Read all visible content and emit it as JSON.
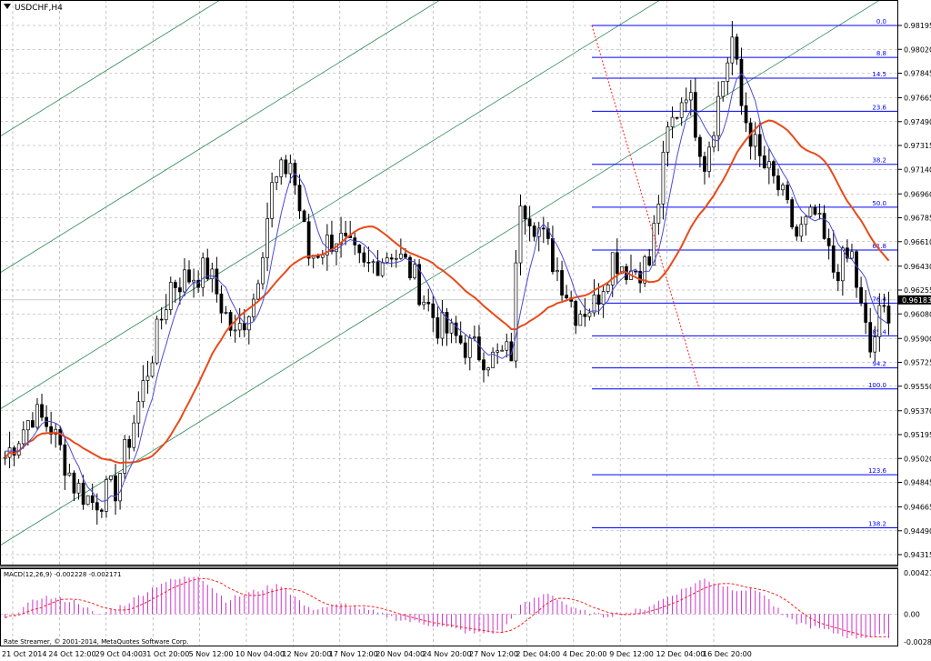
{
  "chart_title": "USDCHF,H4",
  "macd_label": "MACD(12,26,9) -0.002228 -0.002171",
  "copyright": "Rate Streamer, © 2001-2014, MetaQuotes Software Corp.",
  "current_price": "0.96183",
  "colors": {
    "candles": "#000000",
    "ma_fast": "#4a4ad8",
    "ma_slow": "#e84a1a",
    "channel": "#2e8b57",
    "fib": "#0000ff",
    "macd_hist": "#cc33cc",
    "macd_signal": "#ff2020",
    "grid": "#9e9e9e"
  },
  "chart_data": {
    "type": "candlestick",
    "symbol": "USDCHF",
    "timeframe": "H4",
    "price_ticks": [
      "0.98195",
      "0.98020",
      "0.97845",
      "0.97665",
      "0.97490",
      "0.97315",
      "0.97140",
      "0.96960",
      "0.96785",
      "0.96610",
      "0.96430",
      "0.96255",
      "0.96080",
      "0.95900",
      "0.95725",
      "0.95550",
      "0.95370",
      "0.95195",
      "0.95020",
      "0.94845",
      "0.94665",
      "0.94490",
      "0.94315"
    ],
    "price_range": [
      0.9422,
      0.9829
    ],
    "time_ticks": [
      "21 Oct 2014",
      "24 Oct 12:00",
      "29 Oct 04:00",
      "31 Oct 20:00",
      "5 Nov 12:00",
      "10 Nov 04:00",
      "12 Nov 20:00",
      "17 Nov 12:00",
      "20 Nov 04:00",
      "24 Nov 20:00",
      "27 Nov 12:00",
      "2 Dec 04:00",
      "4 Dec 20:00",
      "9 Dec 12:00",
      "12 Dec 04:00",
      "16 Dec 20:00"
    ],
    "close_anchors": [
      [
        0,
        0.9503
      ],
      [
        6,
        0.9535
      ],
      [
        10,
        0.9525
      ],
      [
        15,
        0.9483
      ],
      [
        19,
        0.947
      ],
      [
        24,
        0.948
      ],
      [
        30,
        0.9555
      ],
      [
        36,
        0.963
      ],
      [
        44,
        0.964
      ],
      [
        50,
        0.959
      ],
      [
        54,
        0.962
      ],
      [
        58,
        0.97
      ],
      [
        62,
        0.972
      ],
      [
        66,
        0.965
      ],
      [
        72,
        0.9665
      ],
      [
        78,
        0.964
      ],
      [
        84,
        0.9655
      ],
      [
        88,
        0.964
      ],
      [
        94,
        0.96
      ],
      [
        100,
        0.9585
      ],
      [
        106,
        0.9575
      ],
      [
        110,
        0.958
      ],
      [
        112,
        0.9695
      ],
      [
        116,
        0.967
      ],
      [
        120,
        0.964
      ],
      [
        124,
        0.961
      ],
      [
        128,
        0.9615
      ],
      [
        132,
        0.965
      ],
      [
        136,
        0.964
      ],
      [
        140,
        0.9645
      ],
      [
        144,
        0.974
      ],
      [
        148,
        0.9775
      ],
      [
        152,
        0.972
      ],
      [
        156,
        0.978
      ],
      [
        158,
        0.981
      ],
      [
        160,
        0.976
      ],
      [
        164,
        0.972
      ],
      [
        168,
        0.97
      ],
      [
        172,
        0.9665
      ],
      [
        176,
        0.968
      ],
      [
        180,
        0.964
      ],
      [
        184,
        0.965
      ],
      [
        186,
        0.961
      ],
      [
        188,
        0.958
      ],
      [
        190,
        0.9605
      ],
      [
        192,
        0.9612
      ]
    ],
    "fibonacci": {
      "high": 0.98195,
      "low": 0.9553,
      "levels": [
        "0.0",
        "8.8",
        "14.5",
        "23.6",
        "38.2",
        "50.0",
        "61.8",
        "76.4",
        "85.4",
        "94.2",
        "100.0",
        "123.6",
        "138.2"
      ]
    },
    "macd": {
      "params": "12,26,9",
      "main": -0.002228,
      "signal": -0.002171,
      "range": [
        -0.00285,
        0.00421
      ],
      "ticks": [
        "0.004215",
        "0.00",
        "-0.002855"
      ],
      "anchors": [
        [
          0,
          -0.0005
        ],
        [
          8,
          0.0018
        ],
        [
          16,
          0.0012
        ],
        [
          20,
          -0.0002
        ],
        [
          26,
          0.001
        ],
        [
          34,
          0.0032
        ],
        [
          42,
          0.004
        ],
        [
          48,
          0.0014
        ],
        [
          56,
          0.0026
        ],
        [
          60,
          0.003
        ],
        [
          66,
          0.0005
        ],
        [
          74,
          0.001
        ],
        [
          80,
          0.0002
        ],
        [
          86,
          -0.0006
        ],
        [
          94,
          -0.0012
        ],
        [
          102,
          -0.002
        ],
        [
          108,
          -0.0018
        ],
        [
          112,
          0.0008
        ],
        [
          118,
          0.0022
        ],
        [
          124,
          0.0004
        ],
        [
          130,
          -0.0002
        ],
        [
          138,
          0.0004
        ],
        [
          146,
          0.0022
        ],
        [
          152,
          0.0036
        ],
        [
          158,
          0.0026
        ],
        [
          164,
          0.0024
        ],
        [
          170,
          -0.0006
        ],
        [
          176,
          -0.0014
        ],
        [
          184,
          -0.0024
        ],
        [
          192,
          -0.0022
        ]
      ]
    }
  }
}
